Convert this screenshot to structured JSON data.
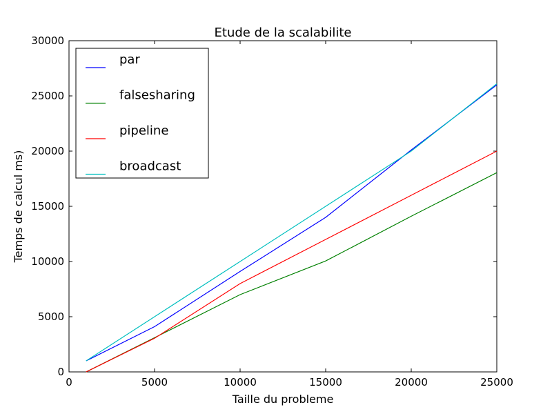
{
  "chart_data": {
    "type": "line",
    "title": "Etude de la scalabilite",
    "xlabel": "Taille du probleme",
    "ylabel": "Temps de calcul ms)",
    "xlim": [
      0,
      25000
    ],
    "ylim": [
      0,
      30000
    ],
    "xticks": [
      0,
      5000,
      10000,
      15000,
      20000,
      25000
    ],
    "yticks": [
      0,
      5000,
      10000,
      15000,
      20000,
      25000,
      30000
    ],
    "xtick_labels": [
      "0",
      "5000",
      "10000",
      "15000",
      "20000",
      "25000"
    ],
    "ytick_labels": [
      "0",
      "5000",
      "10000",
      "15000",
      "20000",
      "25000",
      "30000"
    ],
    "grid": false,
    "legend_position": "top-left",
    "x": [
      1000,
      5000,
      10000,
      15000,
      20000,
      25000
    ],
    "series": [
      {
        "name": "par",
        "color": "#0000ff",
        "values": [
          1000,
          4100,
          9100,
          14000,
          20100,
          26000
        ]
      },
      {
        "name": "falsesharing",
        "color": "#008000",
        "values": [
          0,
          3100,
          7000,
          10050,
          14100,
          18050
        ]
      },
      {
        "name": "pipeline",
        "color": "#ff0000",
        "values": [
          0,
          3050,
          8000,
          12000,
          16000,
          20000
        ]
      },
      {
        "name": "broadcast",
        "color": "#00bfbf",
        "values": [
          1000,
          5000,
          10000,
          15000,
          20000,
          26100
        ]
      }
    ]
  }
}
